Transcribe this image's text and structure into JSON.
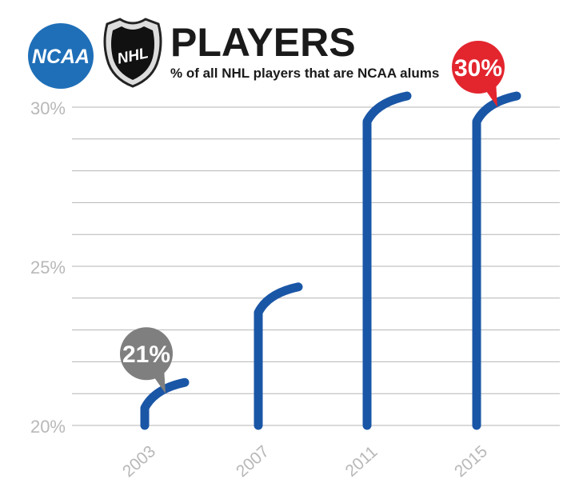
{
  "header": {
    "logo_left_text": "NCAA",
    "logo_right_text": "NHL",
    "title": "PLAYERS",
    "subtitle": "% of all NHL players that are NCAA alums"
  },
  "colors": {
    "ncaa_blue": "#1f6fb8",
    "stick_blue": "#1a56a6",
    "callout_gray": "#7f7f7f",
    "callout_red": "#e3252e",
    "grid": "#b5b5b5",
    "axis_text": "#b8b8b8"
  },
  "chart_data": {
    "type": "bar",
    "title": "PLAYERS",
    "subtitle": "% of all NHL players that are NCAA alums",
    "categories": [
      "2003",
      "2007",
      "2011",
      "2015"
    ],
    "values": [
      21,
      24,
      30,
      30
    ],
    "ylim": [
      20,
      30
    ],
    "yticks": [
      "20%",
      "25%",
      "30%"
    ],
    "ytick_values": [
      20,
      25,
      30
    ],
    "grid": true,
    "bar_style": "hockey-stick",
    "annotations": [
      {
        "category": "2003",
        "text": "21%",
        "color": "#7f7f7f"
      },
      {
        "category": "2015",
        "text": "30%",
        "color": "#e3252e"
      }
    ]
  }
}
